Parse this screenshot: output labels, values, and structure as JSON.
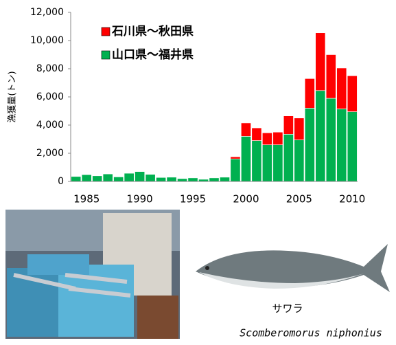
{
  "chart_data": {
    "type": "bar",
    "stacked": true,
    "y_label": "漁獲量(トン)",
    "x": [
      1984,
      1985,
      1986,
      1987,
      1988,
      1989,
      1990,
      1991,
      1992,
      1993,
      1994,
      1995,
      1996,
      1997,
      1998,
      1999,
      2000,
      2001,
      2002,
      2003,
      2004,
      2005,
      2006,
      2007,
      2008,
      2009,
      2010
    ],
    "xlim": [
      1983.5,
      2010.5
    ],
    "xticks": [
      1985,
      1990,
      1995,
      2000,
      2005,
      2010
    ],
    "ylim": [
      0,
      12000
    ],
    "yticks": [
      0,
      {
        "value": 2000,
        "label": "2,000"
      },
      {
        "value": 4000,
        "label": "4,000"
      },
      {
        "value": 6000,
        "label": "6,000"
      },
      {
        "value": 8000,
        "label": "8,000"
      },
      {
        "value": 10000,
        "label": "10,000"
      },
      {
        "value": 12000,
        "label": "12,000"
      }
    ],
    "grid": false,
    "legend": "upper-left",
    "series": [
      {
        "name": "山口県～福井県",
        "color": "#00b050",
        "values": [
          350,
          480,
          400,
          530,
          320,
          580,
          700,
          500,
          280,
          300,
          200,
          250,
          150,
          250,
          300,
          1600,
          3200,
          2900,
          2600,
          2600,
          3350,
          2950,
          5200,
          6450,
          5900,
          5150,
          4950
        ]
      },
      {
        "name": "石川県～秋田県",
        "color": "#ff0000",
        "values": [
          0,
          0,
          0,
          0,
          0,
          0,
          0,
          0,
          0,
          0,
          0,
          0,
          0,
          0,
          0,
          150,
          950,
          900,
          850,
          900,
          1300,
          1550,
          2100,
          4100,
          3100,
          2900,
          2550
        ]
      }
    ]
  },
  "caption": {
    "common_name": "サワラ",
    "scientific_name": "Scomberomorus niphonius"
  }
}
